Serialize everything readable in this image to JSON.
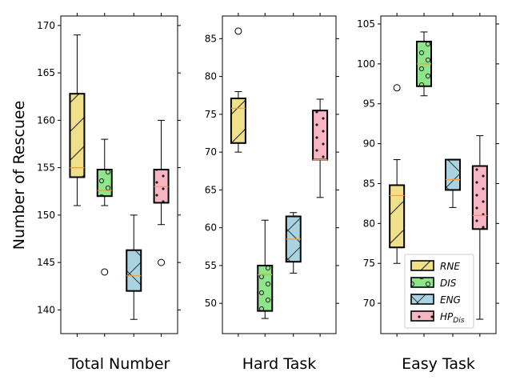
{
  "colors": {
    "RNE": "#f0e08a",
    "DIS": "#8ee58a",
    "ENG": "#a9d3e0",
    "HPDis": "#f7b6c2",
    "median": "#f0a030",
    "axis": "#000000"
  },
  "chart_data": {
    "type": "box",
    "ylabel": "Number of Rescuee",
    "legend": {
      "placement": "lower-right of third panel",
      "entries": [
        {
          "key": "RNE",
          "label": "RNE",
          "hatch": "/"
        },
        {
          "key": "DIS",
          "label": "DIS",
          "hatch": "o"
        },
        {
          "key": "ENG",
          "label": "ENG",
          "hatch": "x"
        },
        {
          "key": "HPDis",
          "label": "HP",
          "sub": "Dis",
          "hatch": "."
        }
      ]
    },
    "panels": [
      {
        "xlabel": "Total Number",
        "ylim": [
          137.5,
          171
        ],
        "yticks": [
          140,
          145,
          150,
          155,
          160,
          165,
          170
        ],
        "boxes": [
          {
            "key": "RNE",
            "q1": 154,
            "median": 155,
            "q3": 162.8,
            "whislo": 151,
            "whishi": 169,
            "fliers": []
          },
          {
            "key": "DIS",
            "q1": 152,
            "median": 152.6,
            "q3": 154.8,
            "whislo": 151,
            "whishi": 158,
            "fliers": [
              144
            ]
          },
          {
            "key": "ENG",
            "q1": 142,
            "median": 143.6,
            "q3": 146.3,
            "whislo": 139,
            "whishi": 150,
            "fliers": []
          },
          {
            "key": "HPDis",
            "q1": 151.3,
            "median": 153,
            "q3": 154.8,
            "whislo": 149,
            "whishi": 160,
            "fliers": [
              145
            ]
          }
        ]
      },
      {
        "xlabel": "Hard Task",
        "ylim": [
          46,
          88
        ],
        "yticks": [
          50,
          55,
          60,
          65,
          70,
          75,
          80,
          85
        ],
        "boxes": [
          {
            "key": "RNE",
            "q1": 71.2,
            "median": 75.8,
            "q3": 77.1,
            "whislo": 70,
            "whishi": 78,
            "fliers": [
              86
            ]
          },
          {
            "key": "DIS",
            "q1": 49,
            "median": 53.8,
            "q3": 55,
            "whislo": 48,
            "whishi": 61,
            "fliers": []
          },
          {
            "key": "ENG",
            "q1": 55.5,
            "median": 58.5,
            "q3": 61.5,
            "whislo": 54,
            "whishi": 62,
            "fliers": []
          },
          {
            "key": "HPDis",
            "q1": 69,
            "median": 69,
            "q3": 75.5,
            "whislo": 64,
            "whishi": 77,
            "fliers": []
          }
        ]
      },
      {
        "xlabel": "Easy Task",
        "ylim": [
          66.2,
          106
        ],
        "yticks": [
          70,
          75,
          80,
          85,
          90,
          95,
          100,
          105
        ],
        "boxes": [
          {
            "key": "RNE",
            "q1": 77,
            "median": 83.5,
            "q3": 84.8,
            "whislo": 75,
            "whishi": 88,
            "fliers": [
              97
            ]
          },
          {
            "key": "DIS",
            "q1": 97.2,
            "median": 100,
            "q3": 102.8,
            "whislo": 96,
            "whishi": 104,
            "fliers": []
          },
          {
            "key": "ENG",
            "q1": 84.2,
            "median": 85.5,
            "q3": 88,
            "whislo": 82,
            "whishi": 88,
            "fliers": []
          },
          {
            "key": "HPDis",
            "q1": 79.3,
            "median": 81,
            "q3": 87.2,
            "whislo": 68,
            "whishi": 91,
            "fliers": []
          }
        ]
      }
    ]
  }
}
